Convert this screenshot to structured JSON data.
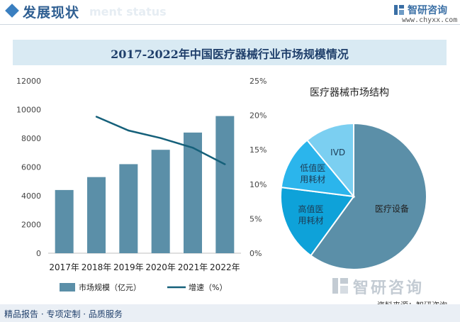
{
  "header": {
    "section_title": "发展现状",
    "ghost_subtitle": "ment status",
    "brand_name": "智研咨询",
    "brand_url": "www.chyxx.com"
  },
  "chart_title": "2017-2022年中国医疗器械行业市场规模情况",
  "chart_data": [
    {
      "type": "bar",
      "title": "",
      "categories": [
        "2017年",
        "2018年",
        "2019年",
        "2020年",
        "2021年",
        "2022年"
      ],
      "series": [
        {
          "name": "市场规模（亿元）",
          "type": "bar",
          "axis": "left",
          "color": "#5b8fa8",
          "values": [
            4400,
            5300,
            6200,
            7200,
            8400,
            9550
          ]
        },
        {
          "name": "增速（%）",
          "type": "line",
          "axis": "right",
          "color": "#15607a",
          "values": [
            null,
            19.8,
            17.8,
            16.7,
            15.3,
            12.9
          ]
        }
      ],
      "y_left": {
        "ticks": [
          0,
          2000,
          4000,
          6000,
          8000,
          10000,
          12000
        ],
        "ylim": [
          0,
          12000
        ]
      },
      "y_right": {
        "ticks": [
          "0%",
          "5%",
          "10%",
          "15%",
          "20%",
          "25%"
        ],
        "ylim": [
          0,
          25
        ]
      },
      "legend": "bottom",
      "grid": false
    },
    {
      "type": "pie",
      "title": "医疗器械市场结构",
      "labels": [
        "医疗设备",
        "高值医用耗材",
        "低值医用耗材",
        "IVD"
      ],
      "label_lines": [
        [
          "医疗设备"
        ],
        [
          "高值医",
          "用耗材"
        ],
        [
          "低值医",
          "用耗材"
        ],
        [
          "IVD"
        ]
      ],
      "values": [
        60,
        17,
        12,
        11
      ],
      "colors": [
        "#5b8fa8",
        "#0ea2d9",
        "#2bb5ec",
        "#7bcff1"
      ],
      "label_colors": [
        "#222222",
        "#1d3c55",
        "#1d3c55",
        "#1d3c55"
      ]
    }
  ],
  "footer": {
    "left": "精品报告 · 专项定制 · 品质服务",
    "right": "资料来源：智研咨询",
    "watermark": "智研咨询"
  }
}
